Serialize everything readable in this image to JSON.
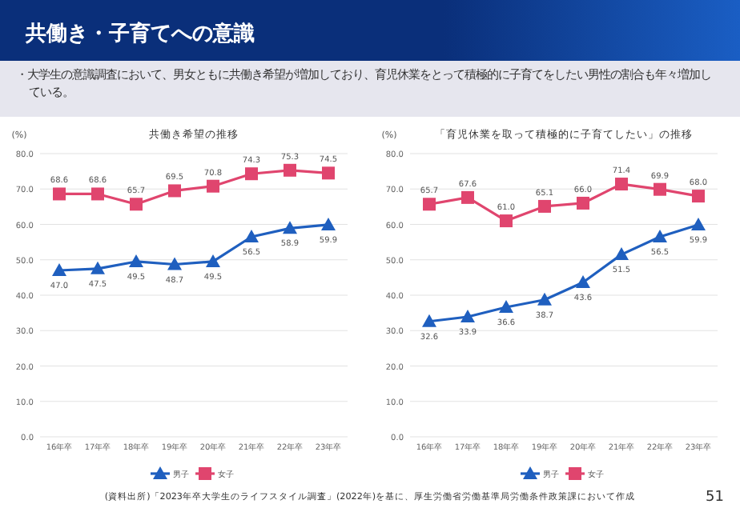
{
  "chart_data": [
    {
      "type": "line",
      "title": "共働き希望の推移",
      "ylabel": "(%)",
      "annotations": [
        "共働き・子育てへの意識",
        "・大学生の意識調査において、男女ともに共働き希望が増加しており、育児休業をとって積極的に子育てをしたい男性の割合も年々増加している。"
      ],
      "categories": [
        "16年卒",
        "17年卒",
        "18年卒",
        "19年卒",
        "20年卒",
        "21年卒",
        "22年卒",
        "23年卒"
      ],
      "series": [
        {
          "name": "男子",
          "color": "#1f5fbf",
          "marker": "triangle",
          "values": [
            47.0,
            47.5,
            49.5,
            48.7,
            49.5,
            56.5,
            58.9,
            59.9
          ],
          "value_labels": [
            "47.0",
            "47.5",
            "49.5",
            "48.7",
            "49.5",
            "56.5",
            "58.9",
            "59.9"
          ]
        },
        {
          "name": "女子",
          "color": "#e0456e",
          "marker": "square",
          "values": [
            68.6,
            68.6,
            65.7,
            69.5,
            70.8,
            74.3,
            75.3,
            74.5
          ],
          "value_labels": [
            "68.6",
            "68.6",
            "65.7",
            "69.5",
            "70.8",
            "74.3",
            "75.3",
            "74.5"
          ]
        }
      ],
      "ylim": [
        0,
        80
      ],
      "yticks": [
        {
          "value": 0,
          "label": "0.0"
        },
        {
          "value": 10,
          "label": "10.0"
        },
        {
          "value": 20,
          "label": "20.0"
        },
        {
          "value": 30,
          "label": "30.0"
        },
        {
          "value": 40,
          "label": "40.0"
        },
        {
          "value": 50,
          "label": "50.0"
        },
        {
          "value": 60,
          "label": "60.0"
        },
        {
          "value": 70,
          "label": "70.0"
        },
        {
          "value": 80,
          "label": "80.0"
        }
      ],
      "grid": "y",
      "legend": "bottom"
    },
    {
      "type": "line",
      "title": "「育児休業を取って積極的に子育てしたい」の推移",
      "ylabel": "(%)",
      "annotations": [
        "(資料出所)「2023年卒大学生のライフスタイル調査」(2022年)を基に、厚生労働省労働基準局労働条件政策課において作成",
        "51"
      ],
      "categories": [
        "16年卒",
        "17年卒",
        "18年卒",
        "19年卒",
        "20年卒",
        "21年卒",
        "22年卒",
        "23年卒"
      ],
      "series": [
        {
          "name": "男子",
          "color": "#1f5fbf",
          "marker": "triangle",
          "values": [
            32.6,
            33.9,
            36.6,
            38.7,
            43.6,
            51.5,
            56.5,
            59.9
          ],
          "value_labels": [
            "32.6",
            "33.9",
            "36.6",
            "38.7",
            "43.6",
            "51.5",
            "56.5",
            "59.9"
          ]
        },
        {
          "name": "女子",
          "color": "#e0456e",
          "marker": "square",
          "values": [
            65.7,
            67.6,
            61.0,
            65.1,
            66.0,
            71.4,
            69.9,
            68.0
          ],
          "value_labels": [
            "65.7",
            "67.6",
            "61.0",
            "65.1",
            "66.0",
            "71.4",
            "69.9",
            "68.0"
          ]
        }
      ],
      "ylim": [
        0,
        80
      ],
      "yticks": [
        {
          "value": 0,
          "label": "0.0"
        },
        {
          "value": 10,
          "label": "10.0"
        },
        {
          "value": 20,
          "label": "20.0"
        },
        {
          "value": 30,
          "label": "30.0"
        },
        {
          "value": 40,
          "label": "40.0"
        },
        {
          "value": 50,
          "label": "50.0"
        },
        {
          "value": 60,
          "label": "60.0"
        },
        {
          "value": 70,
          "label": "70.0"
        },
        {
          "value": 80,
          "label": "80.0"
        }
      ],
      "grid": "y",
      "legend": "bottom"
    }
  ]
}
